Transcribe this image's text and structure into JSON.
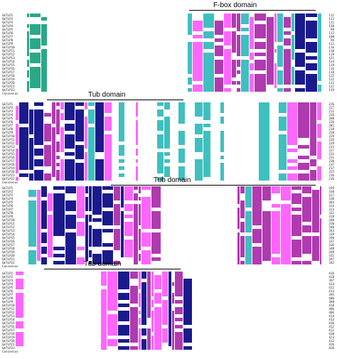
{
  "domains": [
    {
      "label": "F-box domain"
    },
    {
      "label": "Tub domain"
    },
    {
      "label": "Tub domain"
    },
    {
      "label": "Tub domain"
    }
  ],
  "sequences": [
    "GmTLP1",
    "GmTLP2",
    "GmTLP3",
    "GmTLP4",
    "GmTLP5",
    "GmTLP6",
    "GmTLP7",
    "GmTLP8",
    "GmTLP9",
    "GmTLP10",
    "GmTLP11",
    "GmTLP12",
    "GmTLP13",
    "GmTLP14",
    "GmTLP15",
    "GmTLP16",
    "GmTLP17",
    "GmTLP18",
    "GmTLP19",
    "GmTLP20",
    "GmTLP21",
    "GmTLP22"
  ],
  "consensus_label": "Consensus",
  "blocks": [
    {
      "end_positions": [
        "112",
        "113",
        "111",
        "120",
        "99",
        "112",
        "100",
        "94",
        "111",
        "116",
        "110",
        "119",
        "121",
        "124",
        "119",
        "116",
        "118",
        "125",
        "122",
        "112",
        "122",
        "129"
      ]
    },
    {
      "end_positions": [
        "226",
        "227",
        "211",
        "226",
        "208",
        "226",
        "202",
        "218",
        "220",
        "229",
        "226",
        "229",
        "233",
        "227",
        "233",
        "231",
        "230",
        "237",
        "237",
        "225",
        "236",
        "236"
      ]
    },
    {
      "end_positions": [
        "339",
        "338",
        "317",
        "330",
        "303",
        "334",
        "313",
        "332",
        "319",
        "340",
        "330",
        "340",
        "343",
        "339",
        "340",
        "337",
        "336",
        "348",
        "348",
        "332",
        "347",
        "342"
      ]
    },
    {
      "end_positions": [
        "416",
        "418",
        "397",
        "414",
        "412",
        "413",
        "395",
        "406",
        "388",
        "410",
        "406",
        "406",
        "414",
        "413",
        "430",
        "412",
        "412",
        "438",
        "423",
        "412",
        "426",
        "426"
      ]
    }
  ],
  "colors": {
    "identical": "#1a1a8c",
    "high": "#b03ab0",
    "medium": "#3ec0c0",
    "low": "#ff66ff",
    "green": "#2aa888"
  }
}
